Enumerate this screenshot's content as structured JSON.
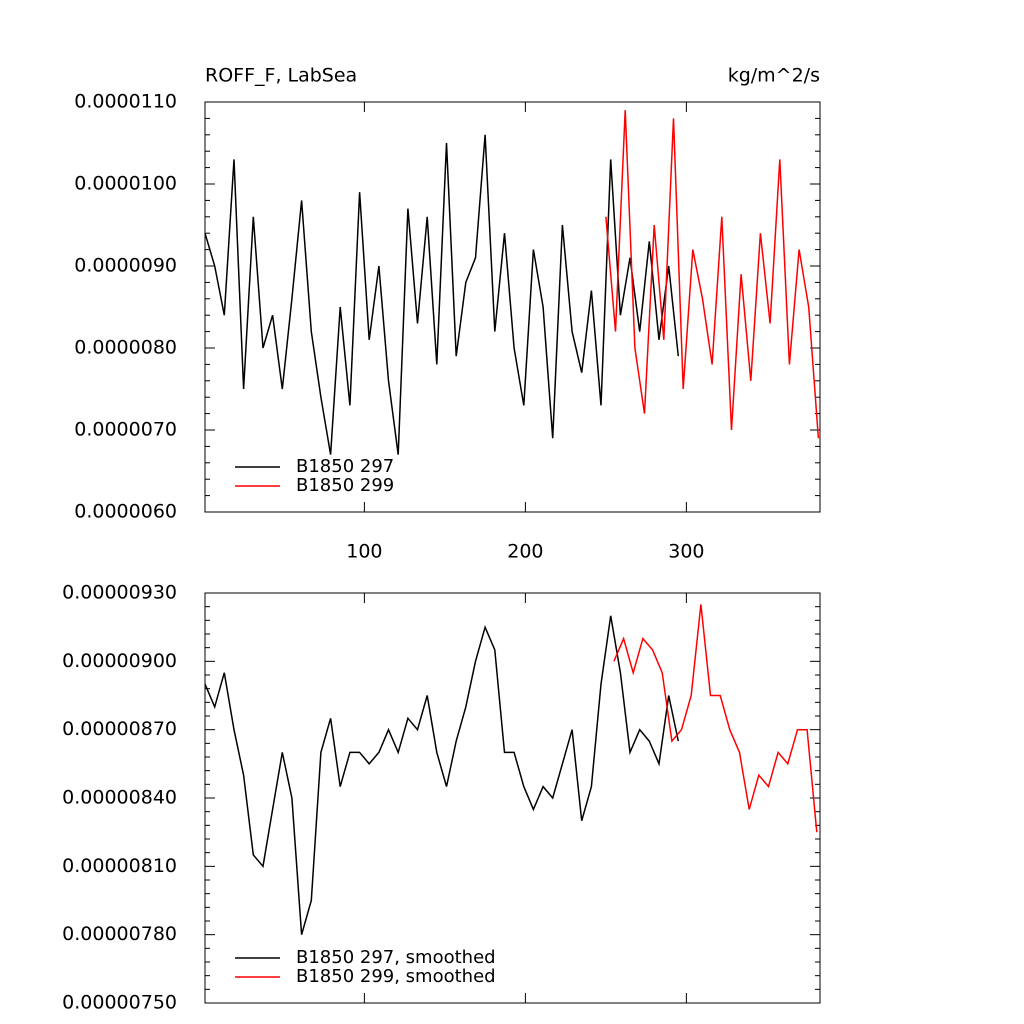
{
  "chart_data": [
    {
      "type": "line",
      "title": "ROFF_F, LabSea",
      "units": "kg/m^2/s",
      "xlim": [
        1,
        383
      ],
      "xticks": [
        100,
        200,
        300
      ],
      "ylim": [
        6e-06,
        1.1e-05
      ],
      "yticks": [
        {
          "value": 6e-06,
          "label": "0.0000060"
        },
        {
          "value": 7e-06,
          "label": "0.0000070"
        },
        {
          "value": 8e-06,
          "label": "0.0000080"
        },
        {
          "value": 9e-06,
          "label": "0.0000090"
        },
        {
          "value": 1e-05,
          "label": "0.0000100"
        },
        {
          "value": 1.1e-05,
          "label": "0.0000110"
        }
      ],
      "legend": "lower left",
      "series": [
        {
          "name": "B1850 297",
          "color": "#000000",
          "x": [
            1,
            7,
            13,
            19,
            25,
            31,
            37,
            43,
            49,
            55,
            61,
            67,
            73,
            79,
            85,
            91,
            97,
            103,
            109,
            115,
            121,
            127,
            133,
            139,
            145,
            151,
            157,
            163,
            169,
            175,
            181,
            187,
            193,
            199,
            205,
            211,
            217,
            223,
            229,
            235,
            241,
            247,
            253,
            259,
            265,
            271,
            277,
            283,
            289,
            295
          ],
          "values": [
            9.4e-06,
            9e-06,
            8.4e-06,
            1.03e-05,
            7.5e-06,
            9.6e-06,
            8e-06,
            8.4e-06,
            7.5e-06,
            8.6e-06,
            9.8e-06,
            8.2e-06,
            7.4e-06,
            6.7e-06,
            8.5e-06,
            7.3e-06,
            9.9e-06,
            8.1e-06,
            9e-06,
            7.6e-06,
            6.7e-06,
            9.7e-06,
            8.3e-06,
            9.6e-06,
            7.8e-06,
            1.05e-05,
            7.9e-06,
            8.8e-06,
            9.1e-06,
            1.06e-05,
            8.2e-06,
            9.4e-06,
            8e-06,
            7.3e-06,
            9.2e-06,
            8.5e-06,
            6.9e-06,
            9.5e-06,
            8.2e-06,
            7.7e-06,
            8.7e-06,
            7.3e-06,
            1.03e-05,
            8.4e-06,
            9.1e-06,
            8.2e-06,
            9.3e-06,
            8.1e-06,
            9e-06,
            7.9e-06
          ]
        },
        {
          "name": "B1850 299",
          "color": "#ff0000",
          "x": [
            250,
            256,
            262,
            268,
            274,
            280,
            286,
            292,
            298,
            304,
            310,
            316,
            322,
            328,
            334,
            340,
            346,
            352,
            358,
            364,
            370,
            376,
            382
          ],
          "values": [
            9.6e-06,
            8.2e-06,
            1.09e-05,
            8e-06,
            7.2e-06,
            9.5e-06,
            8.1e-06,
            1.08e-05,
            7.5e-06,
            9.2e-06,
            8.6e-06,
            7.8e-06,
            9.6e-06,
            7e-06,
            8.9e-06,
            7.6e-06,
            9.4e-06,
            8.3e-06,
            1.03e-05,
            7.8e-06,
            9.2e-06,
            8.5e-06,
            6.9e-06
          ]
        }
      ]
    },
    {
      "type": "line",
      "xlim": [
        1,
        383
      ],
      "xticks": [
        100,
        200,
        300
      ],
      "ylim": [
        7.5e-06,
        9.3e-06
      ],
      "yticks": [
        {
          "value": 7.5e-06,
          "label": "0.00000750"
        },
        {
          "value": 7.8e-06,
          "label": "0.00000780"
        },
        {
          "value": 8.1e-06,
          "label": "0.00000810"
        },
        {
          "value": 8.4e-06,
          "label": "0.00000840"
        },
        {
          "value": 8.7e-06,
          "label": "0.00000870"
        },
        {
          "value": 9e-06,
          "label": "0.00000900"
        },
        {
          "value": 9.3e-06,
          "label": "0.00000930"
        }
      ],
      "legend": "lower left",
      "series": [
        {
          "name": "B1850 297, smoothed",
          "color": "#000000",
          "x": [
            1,
            7,
            13,
            19,
            25,
            31,
            37,
            43,
            49,
            55,
            61,
            67,
            73,
            79,
            85,
            91,
            97,
            103,
            109,
            115,
            121,
            127,
            133,
            139,
            145,
            151,
            157,
            163,
            169,
            175,
            181,
            187,
            193,
            199,
            205,
            211,
            217,
            223,
            229,
            235,
            241,
            247,
            253,
            259,
            265,
            271,
            277,
            283,
            289,
            295
          ],
          "values": [
            8.9e-06,
            8.8e-06,
            8.95e-06,
            8.7e-06,
            8.5e-06,
            8.15e-06,
            8.1e-06,
            8.35e-06,
            8.6e-06,
            8.4e-06,
            7.8e-06,
            7.95e-06,
            8.6e-06,
            8.75e-06,
            8.45e-06,
            8.6e-06,
            8.6e-06,
            8.55e-06,
            8.6e-06,
            8.7e-06,
            8.6e-06,
            8.75e-06,
            8.7e-06,
            8.85e-06,
            8.6e-06,
            8.45e-06,
            8.65e-06,
            8.8e-06,
            9e-06,
            9.15e-06,
            9.05e-06,
            8.6e-06,
            8.6e-06,
            8.45e-06,
            8.35e-06,
            8.45e-06,
            8.4e-06,
            8.55e-06,
            8.7e-06,
            8.3e-06,
            8.45e-06,
            8.9e-06,
            9.2e-06,
            8.95e-06,
            8.6e-06,
            8.7e-06,
            8.65e-06,
            8.55e-06,
            8.85e-06,
            8.65e-06
          ]
        },
        {
          "name": "B1850 299, smoothed",
          "color": "#ff0000",
          "x": [
            255,
            261,
            267,
            273,
            279,
            285,
            291,
            297,
            303,
            309,
            315,
            321,
            327,
            333,
            339,
            345,
            351,
            357,
            363,
            369,
            375,
            381
          ],
          "values": [
            9e-06,
            9.1e-06,
            8.95e-06,
            9.1e-06,
            9.05e-06,
            8.95e-06,
            8.65e-06,
            8.7e-06,
            8.85e-06,
            9.25e-06,
            8.85e-06,
            8.85e-06,
            8.7e-06,
            8.6e-06,
            8.35e-06,
            8.5e-06,
            8.45e-06,
            8.6e-06,
            8.55e-06,
            8.7e-06,
            8.7e-06,
            8.25e-06
          ]
        }
      ]
    }
  ]
}
